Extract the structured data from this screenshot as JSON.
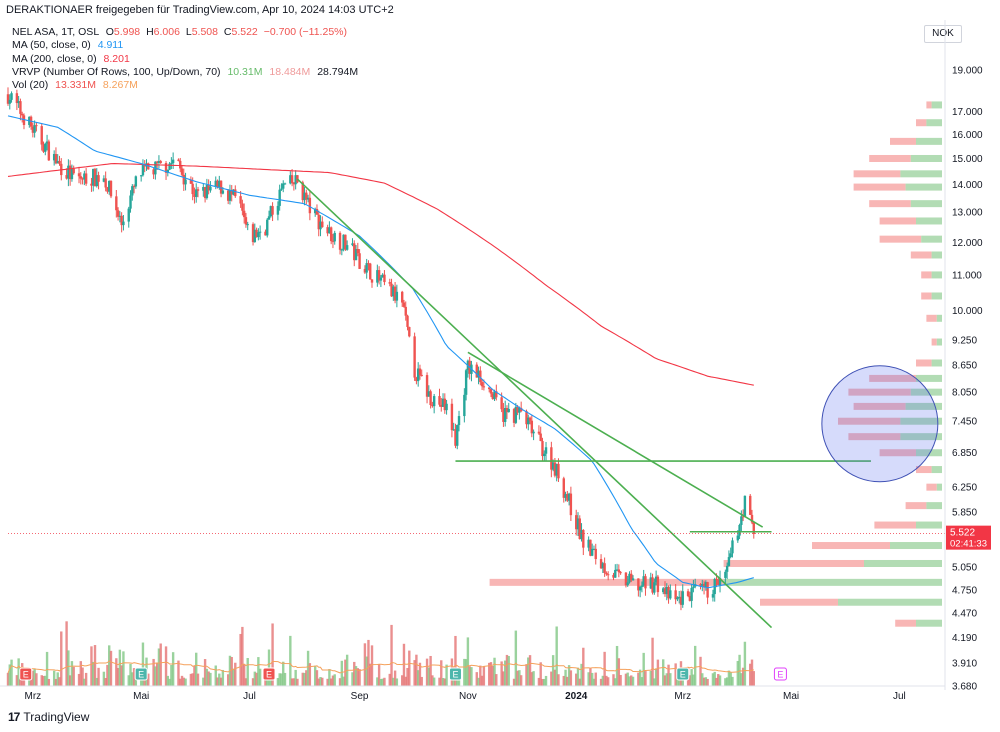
{
  "header": {
    "text": "DERAKTIONAER freigegeben für TradingView.com, Apr 10, 2024 14:03 UTC+2"
  },
  "legend": {
    "symbol": "NEL ASA, 1T, OSL",
    "ohlc": {
      "O": "5.998",
      "H": "6.006",
      "L": "5.508",
      "C": "5.522",
      "change": "−0.700 (−11.25%)"
    },
    "ma50": {
      "label": "MA (50, close, 0)",
      "value": "4.911",
      "color": "#2196f3"
    },
    "ma200": {
      "label": "MA (200, close, 0)",
      "value": "8.201",
      "color": "#f23645"
    },
    "vrvp": {
      "label": "VRVP (Number Of Rows, 100, Up/Down, 70)",
      "up": "10.31M",
      "down": "18.484M",
      "total": "28.794M"
    },
    "vol": {
      "label": "Vol (20)",
      "value": "13.331M",
      "ma": "8.267M"
    }
  },
  "currency": "NOK",
  "price_label": {
    "value": "5.522",
    "countdown": "02:41:33",
    "color": "#f23645"
  },
  "footer": {
    "logo": "17",
    "brand": "TradingView"
  },
  "colors": {
    "up": "#26a69a",
    "down": "#ef5350",
    "trendline": "#4caf50",
    "ma50": "#2196f3",
    "ma200": "#f23645",
    "vol_ma": "#f5a15b"
  },
  "chart_data": {
    "type": "candlestick",
    "title": "NEL ASA, 1T, OSL",
    "y_axis": {
      "scale": "log",
      "range": [
        3.68,
        19.5
      ],
      "ticks": [
        "19.000",
        "17.000",
        "16.000",
        "15.000",
        "14.000",
        "13.000",
        "12.000",
        "11.000",
        "10.000",
        "9.250",
        "8.650",
        "8.050",
        "7.450",
        "6.850",
        "6.250",
        "5.850",
        "5.050",
        "4.750",
        "4.470",
        "4.190",
        "3.910",
        "3.680"
      ]
    },
    "x_axis": {
      "range": [
        "2023-02-15",
        "2024-07-25"
      ],
      "ticks": [
        {
          "date": "2023-03-01",
          "label": "Mrz",
          "bold": false
        },
        {
          "date": "2023-05-01",
          "label": "Mai",
          "bold": false
        },
        {
          "date": "2023-07-01",
          "label": "Jul",
          "bold": false
        },
        {
          "date": "2023-09-01",
          "label": "Sep",
          "bold": false
        },
        {
          "date": "2023-11-01",
          "label": "Nov",
          "bold": false
        },
        {
          "date": "2024-01-01",
          "label": "2024",
          "bold": true
        },
        {
          "date": "2024-03-01",
          "label": "Mrz",
          "bold": false
        },
        {
          "date": "2024-05-01",
          "label": "Mai",
          "bold": false
        },
        {
          "date": "2024-07-01",
          "label": "Jul",
          "bold": false
        }
      ]
    },
    "price_path": [
      [
        "2023-02-15",
        17.8
      ],
      [
        "2023-03-01",
        16.2
      ],
      [
        "2023-03-15",
        14.8
      ],
      [
        "2023-03-25",
        14.2
      ],
      [
        "2023-04-10",
        14.3
      ],
      [
        "2023-04-20",
        12.6
      ],
      [
        "2023-04-30",
        14.4
      ],
      [
        "2023-05-10",
        14.6
      ],
      [
        "2023-05-20",
        14.9
      ],
      [
        "2023-06-01",
        13.6
      ],
      [
        "2023-06-15",
        13.9
      ],
      [
        "2023-06-25",
        13.3
      ],
      [
        "2023-07-01",
        12.1
      ],
      [
        "2023-07-10",
        12.5
      ],
      [
        "2023-07-20",
        13.9
      ],
      [
        "2023-07-28",
        14.1
      ],
      [
        "2023-08-05",
        13.0
      ],
      [
        "2023-08-15",
        12.3
      ],
      [
        "2023-08-25",
        11.9
      ],
      [
        "2023-09-05",
        11.2
      ],
      [
        "2023-09-15",
        10.7
      ],
      [
        "2023-09-25",
        10.2
      ],
      [
        "2023-10-01",
        8.6
      ],
      [
        "2023-10-10",
        8.0
      ],
      [
        "2023-10-20",
        7.7
      ],
      [
        "2023-10-25",
        7.1
      ],
      [
        "2023-11-01",
        8.6
      ],
      [
        "2023-11-10",
        8.3
      ],
      [
        "2023-11-20",
        7.6
      ],
      [
        "2023-12-01",
        7.6
      ],
      [
        "2023-12-10",
        7.1
      ],
      [
        "2023-12-20",
        6.6
      ],
      [
        "2024-01-05",
        5.4
      ],
      [
        "2024-01-15",
        5.1
      ],
      [
        "2024-01-25",
        4.9
      ],
      [
        "2024-02-05",
        4.8
      ],
      [
        "2024-02-15",
        4.85
      ],
      [
        "2024-02-25",
        4.6
      ],
      [
        "2024-03-05",
        4.7
      ],
      [
        "2024-03-15",
        4.75
      ],
      [
        "2024-03-25",
        4.9
      ],
      [
        "2024-04-05",
        6.0
      ],
      [
        "2024-04-10",
        5.522
      ]
    ],
    "ma50": [
      [
        "2023-02-15",
        16.8
      ],
      [
        "2023-03-15",
        16.3
      ],
      [
        "2023-04-05",
        15.3
      ],
      [
        "2023-05-01",
        14.8
      ],
      [
        "2023-06-01",
        14.1
      ],
      [
        "2023-07-01",
        13.6
      ],
      [
        "2023-08-01",
        13.3
      ],
      [
        "2023-09-01",
        12.2
      ],
      [
        "2023-10-01",
        10.6
      ],
      [
        "2023-10-20",
        9.1
      ],
      [
        "2023-11-15",
        8.1
      ],
      [
        "2023-12-01",
        7.7
      ],
      [
        "2023-12-20",
        7.3
      ],
      [
        "2024-01-10",
        6.7
      ],
      [
        "2024-02-01",
        5.6
      ],
      [
        "2024-02-15",
        5.1
      ],
      [
        "2024-03-01",
        4.85
      ],
      [
        "2024-03-15",
        4.78
      ],
      [
        "2024-04-01",
        4.85
      ],
      [
        "2024-04-10",
        4.911
      ]
    ],
    "ma200": [
      [
        "2023-02-15",
        14.3
      ],
      [
        "2023-04-15",
        14.8
      ],
      [
        "2023-06-01",
        14.7
      ],
      [
        "2023-07-15",
        14.55
      ],
      [
        "2023-08-15",
        14.45
      ],
      [
        "2023-09-15",
        14.05
      ],
      [
        "2023-10-15",
        13.1
      ],
      [
        "2023-11-15",
        11.9
      ],
      [
        "2023-12-15",
        10.7
      ],
      [
        "2024-01-15",
        9.6
      ],
      [
        "2024-02-15",
        8.8
      ],
      [
        "2024-03-15",
        8.4
      ],
      [
        "2024-04-10",
        8.201
      ]
    ],
    "trendlines": [
      {
        "from": [
          "2023-07-28",
          14.2
        ],
        "to": [
          "2024-04-20",
          4.3
        ]
      },
      {
        "from": [
          "2023-11-01",
          8.95
        ],
        "to": [
          "2024-04-15",
          5.62
        ]
      }
    ],
    "horizontal_lines": [
      {
        "price": 6.7,
        "from": "2023-10-25",
        "to": "2024-06-15"
      },
      {
        "price": 5.55,
        "from": "2024-03-05",
        "to": "2024-04-20"
      }
    ],
    "volume_profile": {
      "type": "up/down",
      "rows": [
        {
          "price": 17.3,
          "up": 0.02,
          "down": 0.01
        },
        {
          "price": 16.5,
          "up": 0.03,
          "down": 0.02
        },
        {
          "price": 15.7,
          "up": 0.05,
          "down": 0.05
        },
        {
          "price": 15.0,
          "up": 0.06,
          "down": 0.08
        },
        {
          "price": 14.4,
          "up": 0.08,
          "down": 0.09
        },
        {
          "price": 13.9,
          "up": 0.07,
          "down": 0.1
        },
        {
          "price": 13.3,
          "up": 0.06,
          "down": 0.08
        },
        {
          "price": 12.7,
          "up": 0.05,
          "down": 0.07
        },
        {
          "price": 12.1,
          "up": 0.04,
          "down": 0.08
        },
        {
          "price": 11.6,
          "up": 0.02,
          "down": 0.04
        },
        {
          "price": 11.0,
          "up": 0.02,
          "down": 0.02
        },
        {
          "price": 10.4,
          "up": 0.02,
          "down": 0.02
        },
        {
          "price": 9.8,
          "up": 0.01,
          "down": 0.02
        },
        {
          "price": 9.2,
          "up": 0.01,
          "down": 0.01
        },
        {
          "price": 8.7,
          "up": 0.02,
          "down": 0.03
        },
        {
          "price": 8.35,
          "up": 0.05,
          "down": 0.09
        },
        {
          "price": 8.05,
          "up": 0.06,
          "down": 0.12
        },
        {
          "price": 7.75,
          "up": 0.07,
          "down": 0.1
        },
        {
          "price": 7.45,
          "up": 0.08,
          "down": 0.12
        },
        {
          "price": 7.15,
          "up": 0.08,
          "down": 0.1
        },
        {
          "price": 6.85,
          "up": 0.05,
          "down": 0.07
        },
        {
          "price": 6.55,
          "up": 0.02,
          "down": 0.03
        },
        {
          "price": 6.25,
          "up": 0.01,
          "down": 0.02
        },
        {
          "price": 5.95,
          "up": 0.03,
          "down": 0.04
        },
        {
          "price": 5.65,
          "up": 0.05,
          "down": 0.08
        },
        {
          "price": 5.35,
          "up": 0.1,
          "down": 0.15
        },
        {
          "price": 5.1,
          "up": 0.15,
          "down": 0.27
        },
        {
          "price": 4.85,
          "up": 0.42,
          "down": 0.45
        },
        {
          "price": 4.6,
          "up": 0.2,
          "down": 0.15
        },
        {
          "price": 4.35,
          "up": 0.05,
          "down": 0.04
        }
      ]
    },
    "volume_chart": {
      "visible": true,
      "ma_length": 20
    },
    "event_markers": [
      {
        "date": "2023-02-25",
        "label": "E"
      },
      {
        "date": "2023-05-01",
        "label": "E"
      },
      {
        "date": "2023-07-12",
        "label": "E"
      },
      {
        "date": "2023-10-25",
        "label": "E"
      },
      {
        "date": "2024-03-01",
        "label": "E"
      },
      {
        "date": "2024-04-25",
        "label": "E"
      }
    ],
    "grid": false,
    "legend_position": "top-left",
    "highlight_circle": {
      "center_date": "2024-06-20",
      "center_price": 7.4
    }
  }
}
